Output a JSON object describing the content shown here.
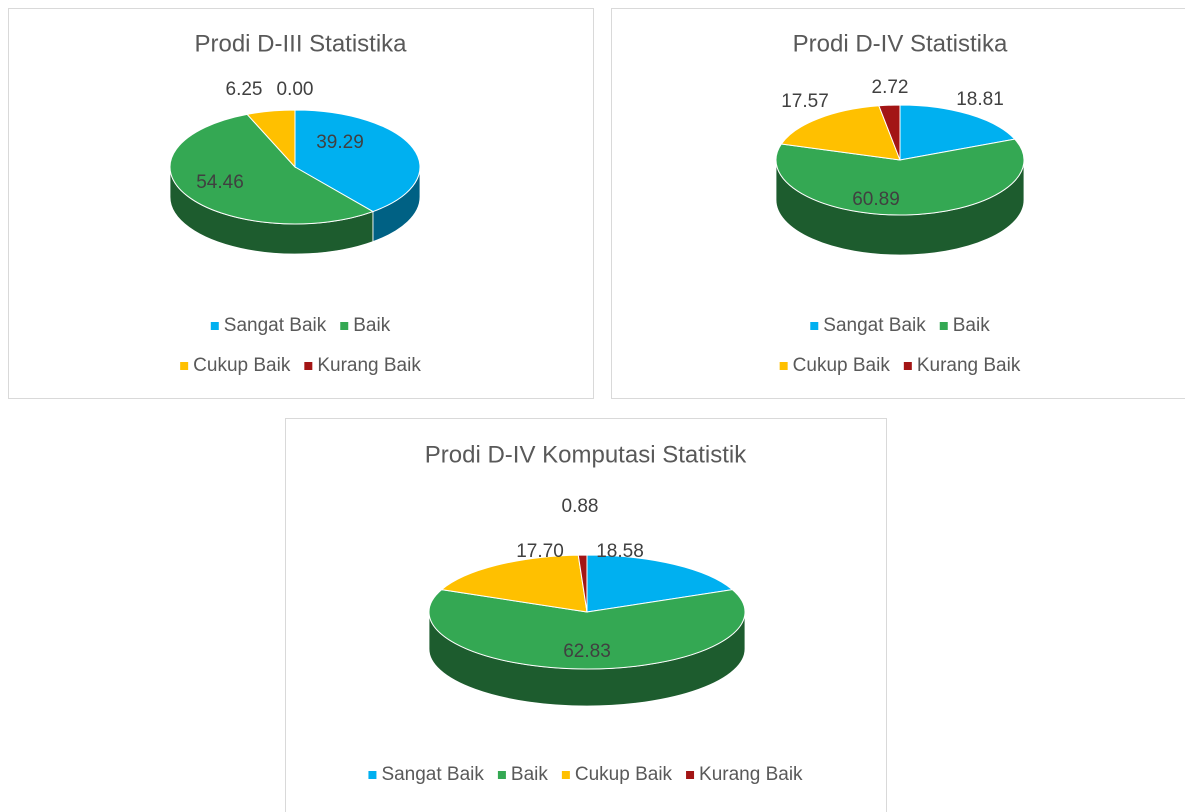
{
  "chart_data": [
    {
      "type": "pie",
      "title": "Prodi D-III Statistika",
      "categories": [
        "Sangat Baik",
        "Baik",
        "Cukup Baik",
        "Kurang Baik"
      ],
      "values": [
        39.29,
        54.46,
        6.25,
        0
      ],
      "value_labels": [
        "39.29",
        "54.46",
        "6.25",
        "0.00"
      ],
      "colors": [
        "#00b0f0",
        "#34a853",
        "#ffc000",
        "#a31515"
      ],
      "legend": "bottom"
    },
    {
      "type": "pie",
      "title": "Prodi D-IV Statistika",
      "categories": [
        "Sangat Baik",
        "Baik",
        "Cukup Baik",
        "Kurang Baik"
      ],
      "values": [
        18.81,
        60.89,
        17.57,
        2.72
      ],
      "value_labels": [
        "18.81",
        "60.89",
        "17.57",
        "2.72"
      ],
      "colors": [
        "#00b0f0",
        "#34a853",
        "#ffc000",
        "#a31515"
      ],
      "legend": "bottom"
    },
    {
      "type": "pie",
      "title": "Prodi D-IV Komputasi Statistik",
      "categories": [
        "Sangat Baik",
        "Baik",
        "Cukup Baik",
        "Kurang Baik"
      ],
      "values": [
        18.58,
        62.83,
        17.7,
        0.88
      ],
      "value_labels": [
        "18.58",
        "62.83",
        "17.70",
        "0.88"
      ],
      "colors": [
        "#00b0f0",
        "#34a853",
        "#ffc000",
        "#a31515"
      ],
      "legend": "bottom"
    }
  ]
}
